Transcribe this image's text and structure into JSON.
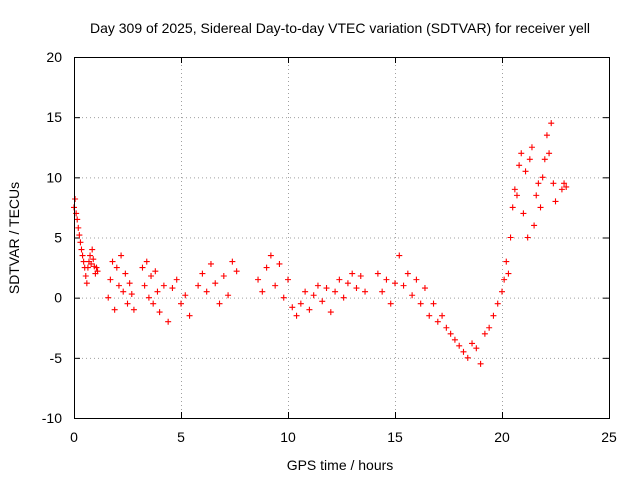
{
  "chart_data": {
    "type": "scatter",
    "title": "Day 309 of 2025, Sidereal Day-to-day VTEC variation (SDTVAR) for receiver yell",
    "xlabel": "GPS time / hours",
    "ylabel": "SDTVAR / TECUs",
    "xlim": [
      0,
      25
    ],
    "ylim": [
      -10,
      20
    ],
    "xticks": [
      "0",
      "5",
      "10",
      "15",
      "20",
      "25"
    ],
    "yticks": [
      "-10",
      "-5",
      "0",
      "5",
      "10",
      "15",
      "20"
    ],
    "grid": true,
    "marker": "plus",
    "color": "#ff0000",
    "series": [
      {
        "name": "SDTVAR",
        "x": [
          0.0,
          0.05,
          0.1,
          0.15,
          0.2,
          0.25,
          0.3,
          0.35,
          0.4,
          0.45,
          0.5,
          0.55,
          0.6,
          0.65,
          0.7,
          0.75,
          0.8,
          0.85,
          0.9,
          0.95,
          1.0,
          1.05,
          1.1,
          1.6,
          1.7,
          1.8,
          1.9,
          2.0,
          2.1,
          2.2,
          2.3,
          2.4,
          2.5,
          2.6,
          2.7,
          2.8,
          3.2,
          3.3,
          3.4,
          3.5,
          3.6,
          3.7,
          3.8,
          3.9,
          4.0,
          4.2,
          4.4,
          4.6,
          4.8,
          5.0,
          5.2,
          5.4,
          5.8,
          6.0,
          6.2,
          6.4,
          6.6,
          6.8,
          7.0,
          7.2,
          7.4,
          7.6,
          8.6,
          8.8,
          9.0,
          9.2,
          9.4,
          9.6,
          9.8,
          10.0,
          10.2,
          10.4,
          10.6,
          10.8,
          11.0,
          11.2,
          11.4,
          11.6,
          11.8,
          12.0,
          12.2,
          12.4,
          12.6,
          12.8,
          13.0,
          13.2,
          13.4,
          13.6,
          14.2,
          14.4,
          14.6,
          14.8,
          15.0,
          15.2,
          15.4,
          15.6,
          15.8,
          16.0,
          16.2,
          16.4,
          16.6,
          16.8,
          17.0,
          17.2,
          17.4,
          17.6,
          17.8,
          18.0,
          18.2,
          18.4,
          18.6,
          18.8,
          19.0,
          19.2,
          19.4,
          19.6,
          19.8,
          20.0,
          20.1,
          20.2,
          20.3,
          20.4,
          20.5,
          20.6,
          20.7,
          20.8,
          20.9,
          21.0,
          21.1,
          21.2,
          21.3,
          21.4,
          21.5,
          21.6,
          21.7,
          21.8,
          21.9,
          22.0,
          22.1,
          22.2,
          22.3,
          22.4,
          22.5,
          22.8,
          22.9,
          23.0
        ],
        "y": [
          7.5,
          8.2,
          7.0,
          6.5,
          5.8,
          5.2,
          4.6,
          4.0,
          3.5,
          3.0,
          2.5,
          1.8,
          1.2,
          2.5,
          3.0,
          3.5,
          2.8,
          4.0,
          3.2,
          2.6,
          2.0,
          2.5,
          2.2,
          0.0,
          1.5,
          3.0,
          -1.0,
          2.5,
          1.0,
          3.5,
          0.5,
          2.0,
          -0.5,
          1.2,
          0.3,
          -1.0,
          2.5,
          1.0,
          3.0,
          0.0,
          1.8,
          -0.5,
          2.2,
          0.5,
          -1.2,
          1.0,
          -2.0,
          0.8,
          1.5,
          -0.5,
          0.2,
          -1.5,
          1.0,
          2.0,
          0.5,
          2.8,
          1.2,
          -0.5,
          1.8,
          0.2,
          3.0,
          2.2,
          1.5,
          0.5,
          2.5,
          3.5,
          1.0,
          2.8,
          0.0,
          1.5,
          -0.8,
          -1.5,
          -0.5,
          0.5,
          -1.0,
          0.2,
          1.0,
          -0.3,
          0.8,
          -1.2,
          0.5,
          1.5,
          0.0,
          1.2,
          2.0,
          0.8,
          1.8,
          0.5,
          2.0,
          0.5,
          1.5,
          -0.5,
          1.2,
          3.5,
          1.0,
          2.0,
          0.2,
          1.5,
          -0.5,
          0.8,
          -1.5,
          -0.5,
          -2.0,
          -1.5,
          -2.5,
          -3.0,
          -3.5,
          -4.0,
          -4.5,
          -5.0,
          -3.8,
          -4.2,
          -5.5,
          -3.0,
          -2.5,
          -1.5,
          -0.5,
          0.5,
          1.5,
          3.0,
          2.0,
          5.0,
          7.5,
          9.0,
          8.5,
          11.0,
          12.0,
          7.0,
          10.5,
          5.0,
          11.5,
          12.5,
          6.0,
          8.5,
          9.5,
          7.5,
          10.0,
          11.5,
          13.5,
          12.0,
          14.5,
          9.5,
          8.0,
          9.0,
          9.5,
          9.2
        ]
      }
    ]
  }
}
